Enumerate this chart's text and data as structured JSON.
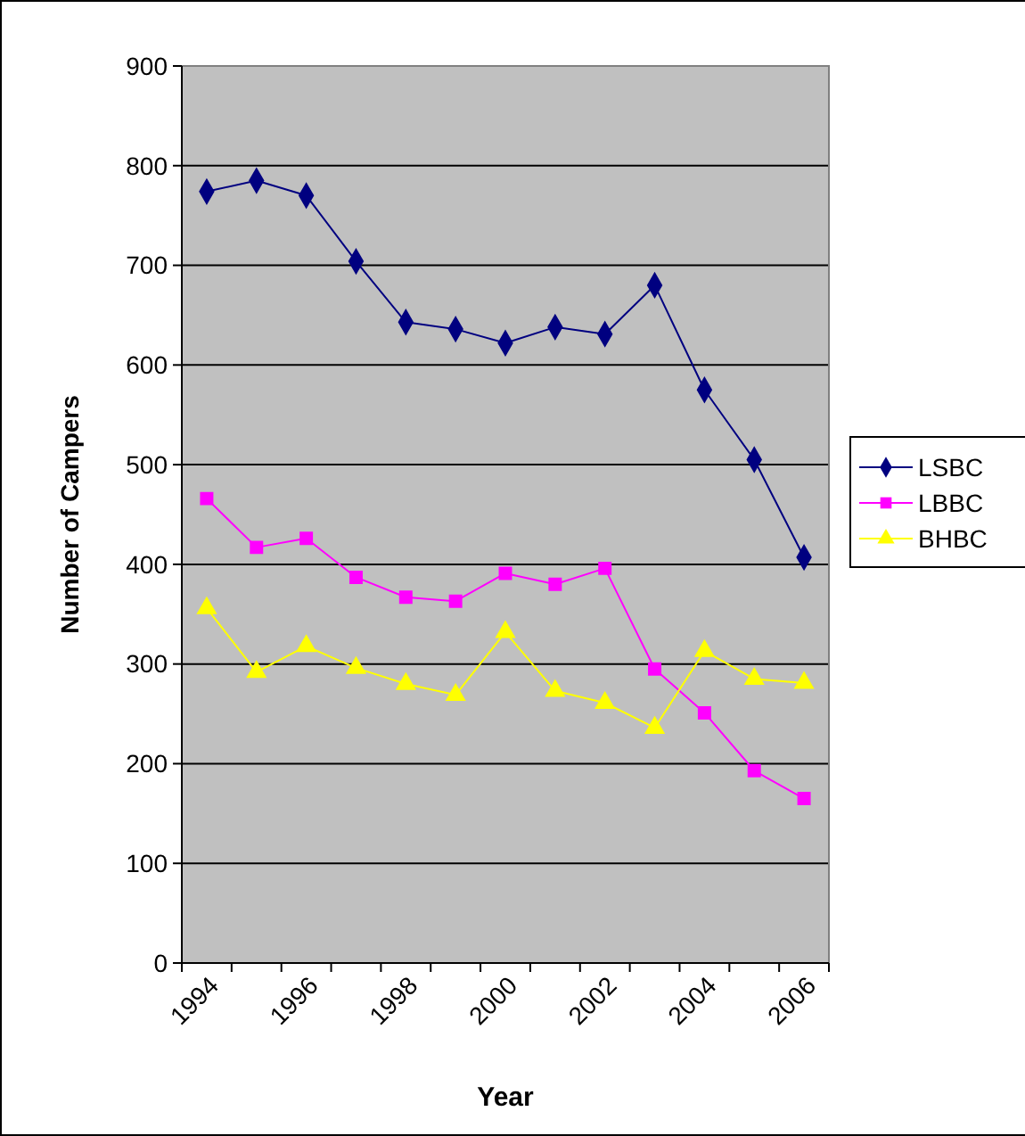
{
  "chart_data": {
    "type": "line",
    "xlabel": "Year",
    "ylabel": "Number of Campers",
    "categories": [
      "1994",
      null,
      "1996",
      null,
      "1998",
      null,
      "2000",
      null,
      "2002",
      null,
      "2004",
      null,
      "2006"
    ],
    "series": [
      {
        "name": "LSBC",
        "color": "#000080",
        "marker": "diamond",
        "values": [
          774,
          785,
          770,
          704,
          643,
          636,
          622,
          638,
          631,
          680,
          575,
          505,
          407
        ]
      },
      {
        "name": "LBBC",
        "color": "#ff00ff",
        "marker": "square",
        "values": [
          466,
          417,
          426,
          387,
          367,
          363,
          391,
          380,
          396,
          295,
          251,
          193,
          165
        ]
      },
      {
        "name": "BHBC",
        "color": "#ffff00",
        "marker": "triangle",
        "values": [
          356,
          292,
          318,
          296,
          280,
          269,
          332,
          273,
          261,
          236,
          313,
          285,
          281
        ]
      }
    ],
    "ylim": [
      0,
      900
    ],
    "yticks": [
      0,
      100,
      200,
      300,
      400,
      500,
      600,
      700,
      800,
      900
    ],
    "grid": "y",
    "legend": "right"
  }
}
